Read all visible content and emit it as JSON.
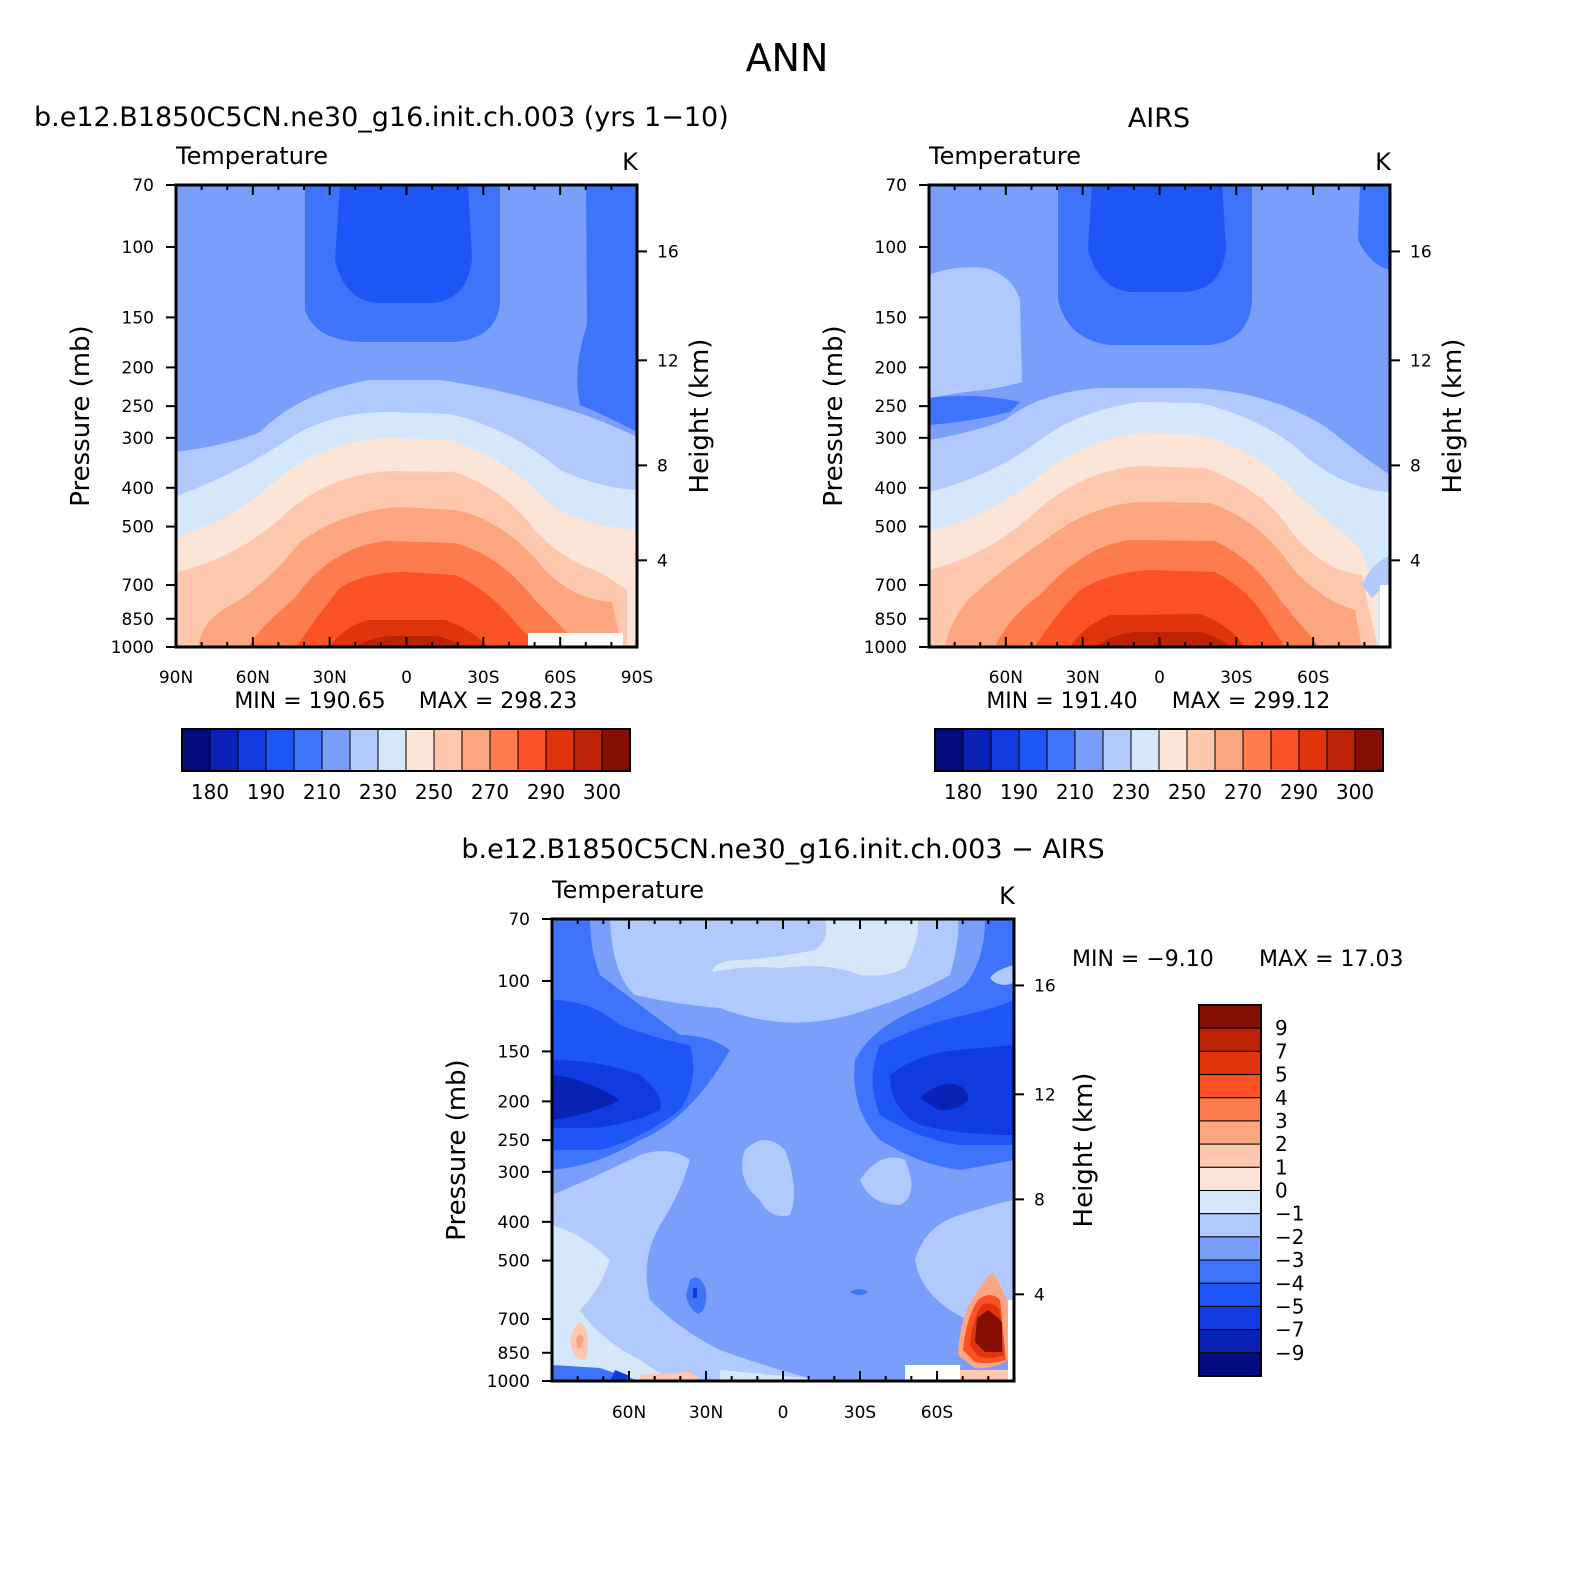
{
  "page": {
    "title": "ANN"
  },
  "palette": [
    "#030b80",
    "#0a22b4",
    "#0f3be0",
    "#1d55f6",
    "#3d74fb",
    "#7a9ffb",
    "#b1c9fc",
    "#d5e7fa",
    "#fce5d6",
    "#fdc8ae",
    "#fca680",
    "#fc7c4e",
    "#fb5124",
    "#e0340d",
    "#bb2206",
    "#850d02"
  ],
  "chart_data": [
    {
      "type": "contour",
      "variable": "Temperature",
      "units": "K",
      "title": "b.e12.B1850C5CN.ne30_g16.init.ch.003 (yrs 1−10)",
      "ylabel": "Pressure (mb)",
      "ylabel_right": "Height (km)",
      "x_ticks": [
        "90N",
        "60N",
        "30N",
        "0",
        "30S",
        "60S",
        "90S"
      ],
      "x_values": [
        90,
        60,
        30,
        0,
        -30,
        -60,
        -90
      ],
      "xlim": [
        90,
        -90
      ],
      "y_ticks": [
        70,
        100,
        150,
        200,
        250,
        300,
        400,
        500,
        700,
        850,
        1000
      ],
      "ylim": [
        70,
        1000
      ],
      "height_ticks": [
        16,
        12,
        8,
        4
      ],
      "min_label": "MIN = 190.65",
      "max_label": "MAX = 298.23",
      "min": 190.65,
      "max": 298.23,
      "colorbar": {
        "levels": [
          175,
          180,
          185,
          190,
          200,
          210,
          220,
          230,
          240,
          250,
          260,
          270,
          280,
          290,
          300
        ],
        "labels": [
          "180",
          "190",
          "210",
          "230",
          "250",
          "270",
          "290",
          "300"
        ]
      }
    },
    {
      "type": "contour",
      "variable": "Temperature",
      "units": "K",
      "title": "AIRS",
      "ylabel": "Pressure (mb)",
      "ylabel_right": "Height (km)",
      "x_ticks": [
        "60N",
        "30N",
        "0",
        "30S",
        "60S"
      ],
      "x_values": [
        60,
        30,
        0,
        -30,
        -60
      ],
      "xlim": [
        90,
        -90
      ],
      "y_ticks": [
        70,
        100,
        150,
        200,
        250,
        300,
        400,
        500,
        700,
        850,
        1000
      ],
      "ylim": [
        70,
        1000
      ],
      "height_ticks": [
        16,
        12,
        8,
        4
      ],
      "min_label": "MIN = 191.40",
      "max_label": "MAX = 299.12",
      "min": 191.4,
      "max": 299.12,
      "colorbar": {
        "levels": [
          175,
          180,
          185,
          190,
          200,
          210,
          220,
          230,
          240,
          250,
          260,
          270,
          280,
          290,
          300
        ],
        "labels": [
          "180",
          "190",
          "210",
          "230",
          "250",
          "270",
          "290",
          "300"
        ]
      }
    },
    {
      "type": "contour",
      "variable": "Temperature",
      "units": "K",
      "title": "b.e12.B1850C5CN.ne30_g16.init.ch.003 − AIRS",
      "ylabel": "Pressure (mb)",
      "ylabel_right": "Height (km)",
      "x_ticks": [
        "60N",
        "30N",
        "0",
        "30S",
        "60S"
      ],
      "x_values": [
        60,
        30,
        0,
        -30,
        -60
      ],
      "xlim": [
        90,
        -90
      ],
      "y_ticks": [
        70,
        100,
        150,
        200,
        250,
        300,
        400,
        500,
        700,
        850,
        1000
      ],
      "ylim": [
        70,
        1000
      ],
      "height_ticks": [
        16,
        12,
        8,
        4
      ],
      "min_label": "MIN = −9.10",
      "max_label": "MAX = 17.03",
      "min": -9.1,
      "max": 17.03,
      "colorbar": {
        "levels": [
          -9,
          -7,
          -5,
          -4,
          -3,
          -2,
          -1,
          0,
          1,
          2,
          3,
          4,
          5,
          7,
          9
        ],
        "labels": [
          "9",
          "7",
          "5",
          "4",
          "3",
          "2",
          "1",
          "0",
          "−1",
          "−2",
          "−3",
          "−4",
          "−5",
          "−7",
          "−9"
        ]
      }
    }
  ]
}
